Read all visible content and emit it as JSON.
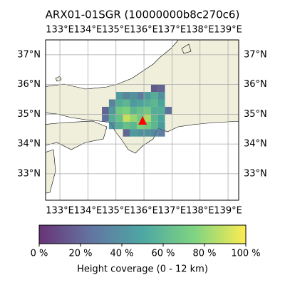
{
  "chart_data": {
    "type": "heatmap-map",
    "title": "ARX01-01SGR (10000000b8c270c6)",
    "xlim": [
      132.49,
      139.38
    ],
    "ylim": [
      32.11,
      37.5
    ],
    "xticks": [
      {
        "value": 133,
        "label": "133°E"
      },
      {
        "value": 134,
        "label": "134°E"
      },
      {
        "value": 135,
        "label": "135°E"
      },
      {
        "value": 136,
        "label": "136°E"
      },
      {
        "value": 137,
        "label": "137°E"
      },
      {
        "value": 138,
        "label": "138°E"
      },
      {
        "value": 139,
        "label": "139°E"
      }
    ],
    "yticks": [
      {
        "value": 33,
        "label": "33°N"
      },
      {
        "value": 34,
        "label": "34°N"
      },
      {
        "value": 35,
        "label": "35°N"
      },
      {
        "value": 36,
        "label": "36°N"
      },
      {
        "value": 37,
        "label": "37°N"
      }
    ],
    "grid": true,
    "cells": {
      "lon": [
        136.375,
        136.625,
        135.125,
        135.375,
        135.625,
        135.875,
        136.125,
        136.375,
        136.625,
        134.875,
        135.125,
        135.375,
        135.625,
        135.875,
        136.125,
        136.375,
        136.625,
        134.625,
        134.875,
        135.125,
        135.375,
        135.625,
        135.875,
        136.125,
        136.375,
        136.625,
        136.875,
        134.625,
        134.875,
        135.125,
        135.375,
        135.625,
        135.875,
        136.125,
        136.375,
        136.625,
        134.875,
        135.125,
        135.375,
        135.625,
        135.875,
        136.125,
        136.375,
        136.625,
        135.375,
        135.625,
        135.875,
        136.125,
        136.375,
        136.625
      ],
      "lat": [
        35.875,
        35.875,
        35.625,
        35.625,
        35.625,
        35.625,
        35.625,
        35.625,
        35.625,
        35.375,
        35.375,
        35.375,
        35.375,
        35.375,
        35.375,
        35.375,
        35.375,
        35.125,
        35.125,
        35.125,
        35.125,
        35.125,
        35.125,
        35.125,
        35.125,
        35.125,
        35.125,
        34.875,
        34.875,
        34.875,
        34.875,
        34.875,
        34.875,
        34.875,
        34.875,
        34.875,
        34.625,
        34.625,
        34.625,
        34.625,
        34.625,
        34.625,
        34.625,
        34.625,
        34.375,
        34.375,
        34.375,
        34.375,
        34.375,
        34.375
      ],
      "values": [
        15,
        20,
        45,
        35,
        40,
        30,
        45,
        55,
        40,
        35,
        55,
        60,
        45,
        50,
        55,
        60,
        50,
        20,
        45,
        70,
        75,
        60,
        65,
        70,
        55,
        55,
        25,
        25,
        55,
        65,
        90,
        80,
        70,
        85,
        60,
        50,
        40,
        55,
        65,
        60,
        75,
        70,
        60,
        45,
        20,
        45,
        40,
        40,
        35,
        30
      ]
    },
    "cmap": "viridis",
    "alpha": 0.8,
    "marker": {
      "lon": 135.95,
      "lat": 34.77,
      "color": "red"
    },
    "colorbar": {
      "label": "Height coverage (0 - 12 km)",
      "lim": [
        0,
        100
      ],
      "ticks": [
        {
          "value": 0,
          "label": "0 %"
        },
        {
          "value": 20,
          "label": "20 %"
        },
        {
          "value": 40,
          "label": "40 %"
        },
        {
          "value": 60,
          "label": "60 %"
        },
        {
          "value": 80,
          "label": "80 %"
        },
        {
          "value": 100,
          "label": "100 %"
        }
      ]
    }
  }
}
